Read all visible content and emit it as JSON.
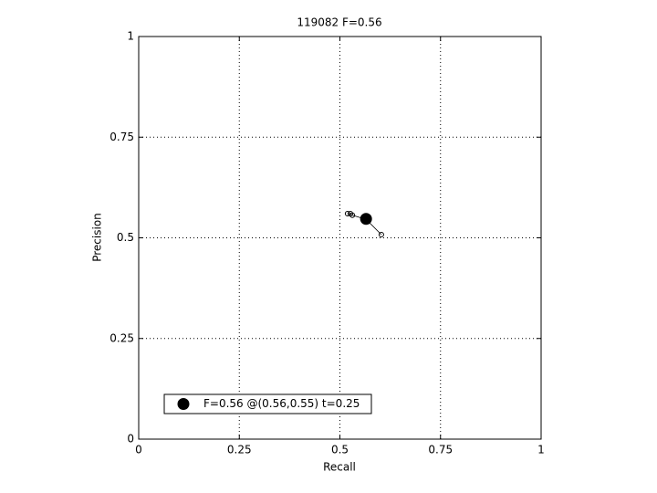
{
  "chart_data": {
    "type": "line",
    "title": "119082 F=0.56",
    "xlabel": "Recall",
    "ylabel": "Precision",
    "xlim": [
      0,
      1
    ],
    "ylim": [
      0,
      1
    ],
    "xticks": [
      0,
      0.25,
      0.5,
      0.75,
      1
    ],
    "yticks": [
      0,
      0.25,
      0.5,
      0.75,
      1
    ],
    "grid": true,
    "legend": "lower left",
    "series": [
      {
        "color": "#000000",
        "marker": "small-circle",
        "x": [
          0.519,
          0.526,
          0.531,
          0.565,
          0.603
        ],
        "values": [
          0.56,
          0.56,
          0.556,
          0.546,
          0.508
        ]
      },
      {
        "name": "F=0.56 @(0.56,0.55) t=0.25",
        "color": "#000000",
        "marker": "big-dot",
        "x": [
          0.565
        ],
        "values": [
          0.547
        ]
      }
    ]
  }
}
